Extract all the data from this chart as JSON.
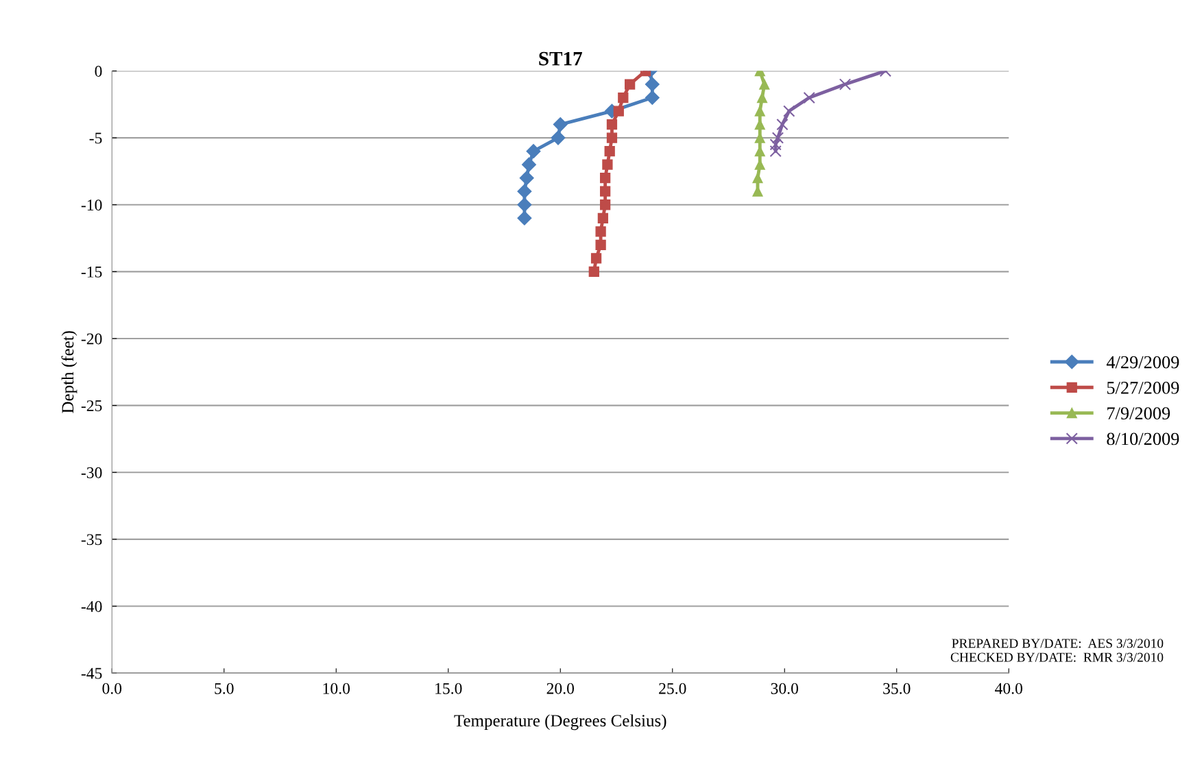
{
  "chart_data": {
    "type": "line",
    "title": "ST17",
    "xlabel": "Temperature (Degrees Celsius)",
    "ylabel": "Depth (feet)",
    "xlim": [
      0,
      40
    ],
    "xticks": [
      {
        "value": 0,
        "label": "0.0"
      },
      {
        "value": 5,
        "label": "5.0"
      },
      {
        "value": 10,
        "label": "10.0"
      },
      {
        "value": 15,
        "label": "15.0"
      },
      {
        "value": 20,
        "label": "20.0"
      },
      {
        "value": 25,
        "label": "25.0"
      },
      {
        "value": 30,
        "label": "30.0"
      },
      {
        "value": 35,
        "label": "35.0"
      },
      {
        "value": 40,
        "label": "40.0"
      }
    ],
    "ylim": [
      -45,
      0
    ],
    "yticks": [
      0,
      -5,
      -10,
      -15,
      -20,
      -25,
      -30,
      -35,
      -40,
      -45
    ],
    "grid": "y",
    "legend": "right",
    "series": [
      {
        "name": "4/29/2009",
        "color": "#4a7ebb",
        "marker": "diamond",
        "x": [
          24.0,
          24.1,
          24.1,
          22.3,
          20.0,
          19.9,
          18.8,
          18.6,
          18.5,
          18.4,
          18.4,
          18.4
        ],
        "values": [
          0,
          -1,
          -2,
          -3,
          -4,
          -5,
          -6,
          -7,
          -8,
          -9,
          -10,
          -11
        ]
      },
      {
        "name": "5/27/2009",
        "color": "#be4b48",
        "marker": "square",
        "x": [
          23.8,
          23.1,
          22.8,
          22.6,
          22.3,
          22.3,
          22.2,
          22.1,
          22.0,
          22.0,
          22.0,
          21.9,
          21.8,
          21.8,
          21.6,
          21.5
        ],
        "values": [
          0,
          -1,
          -2,
          -3,
          -4,
          -5,
          -6,
          -7,
          -8,
          -9,
          -10,
          -11,
          -12,
          -13,
          -14,
          -15
        ]
      },
      {
        "name": "7/9/2009",
        "color": "#98b954",
        "marker": "triangle",
        "x": [
          28.9,
          29.1,
          29.0,
          28.9,
          28.9,
          28.9,
          28.9,
          28.9,
          28.8,
          28.8
        ],
        "values": [
          0,
          -1,
          -2,
          -3,
          -4,
          -5,
          -6,
          -7,
          -8,
          -9
        ]
      },
      {
        "name": "8/10/2009",
        "color": "#7d60a0",
        "marker": "cross",
        "x": [
          34.5,
          32.7,
          31.1,
          30.2,
          29.9,
          29.7,
          29.6,
          29.6
        ],
        "values": [
          0,
          -1,
          -2,
          -3,
          -4,
          -5,
          -5.5,
          -6
        ]
      }
    ],
    "annotations": [
      "PREPARED BY/DATE:  AES 3/3/2010\nCHECKED BY/DATE:  RMR 3/3/2010"
    ]
  }
}
